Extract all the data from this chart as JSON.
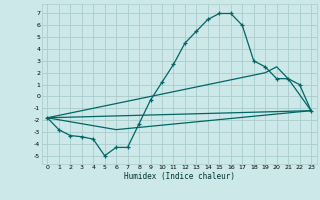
{
  "xlabel": "Humidex (Indice chaleur)",
  "bg_color": "#cce8e8",
  "grid_color": "#aacccc",
  "line_color": "#006666",
  "xlim": [
    -0.5,
    23.5
  ],
  "ylim": [
    -5.7,
    7.8
  ],
  "yticks": [
    -5,
    -4,
    -3,
    -2,
    -1,
    0,
    1,
    2,
    3,
    4,
    5,
    6,
    7
  ],
  "xticks": [
    0,
    1,
    2,
    3,
    4,
    5,
    6,
    7,
    8,
    9,
    10,
    11,
    12,
    13,
    14,
    15,
    16,
    17,
    18,
    19,
    20,
    21,
    22,
    23
  ],
  "series1_x": [
    0,
    1,
    2,
    3,
    4,
    5,
    6,
    7,
    8,
    9,
    10,
    11,
    12,
    13,
    14,
    15,
    16,
    17,
    18,
    19,
    20,
    21,
    22,
    23
  ],
  "series1_y": [
    -1.8,
    -2.8,
    -3.3,
    -3.4,
    -3.6,
    -5.0,
    -4.3,
    -4.3,
    -2.3,
    -0.3,
    1.2,
    2.7,
    4.5,
    5.5,
    6.5,
    7.0,
    7.0,
    6.0,
    3.0,
    2.5,
    1.5,
    1.5,
    1.0,
    -1.2
  ],
  "series2_x": [
    0,
    23
  ],
  "series2_y": [
    -1.8,
    -1.2
  ],
  "series3_x": [
    0,
    6,
    23
  ],
  "series3_y": [
    -1.8,
    -2.8,
    -1.2
  ],
  "series4_x": [
    0,
    19,
    20,
    21,
    23
  ],
  "series4_y": [
    -1.8,
    2.0,
    2.5,
    1.5,
    -1.2
  ]
}
